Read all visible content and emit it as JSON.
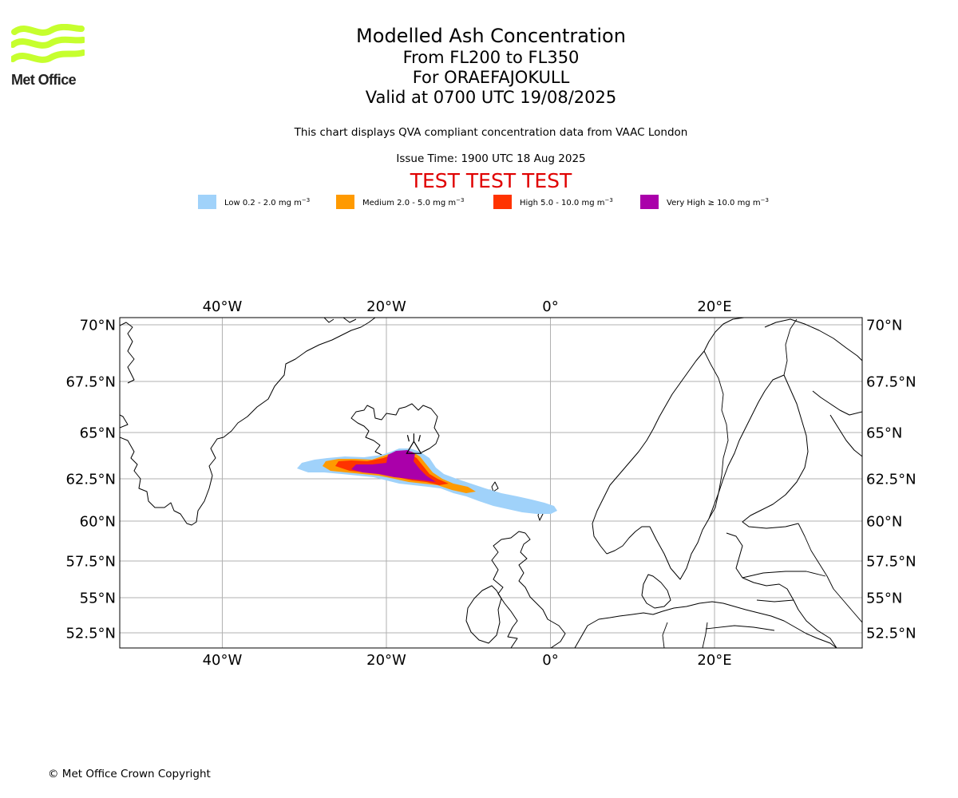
{
  "logo": {
    "text": "Met Office",
    "color": "#c6ff2e"
  },
  "title": {
    "line1": "Modelled Ash Concentration",
    "line2": "From FL200 to FL350",
    "line3": "For ORAEFAJOKULL",
    "line4": "Valid at 0700 UTC 19/08/2025"
  },
  "subtitle": {
    "compliance": "This chart displays QVA compliant concentration data from VAAC London",
    "issue_time": "Issue Time: 1900 UTC 18 Aug 2025"
  },
  "test_banner": "TEST TEST TEST",
  "legend": [
    {
      "key": "low",
      "label": "Low 0.2 - 2.0 mg m",
      "exponent": "−3",
      "color": "#a0d2fa"
    },
    {
      "key": "medium",
      "label": "Medium 2.0 - 5.0 mg m",
      "exponent": "−3",
      "color": "#ff9a00"
    },
    {
      "key": "high",
      "label": "High 5.0 - 10.0 mg m",
      "exponent": "−3",
      "color": "#ff3300"
    },
    {
      "key": "very_high",
      "label": "Very High  ≥  10.0 mg m",
      "exponent": "−3",
      "color": "#aa00aa"
    }
  ],
  "map": {
    "lon_range": [
      -52.5,
      38
    ],
    "lat_range": [
      51.5,
      70.3
    ],
    "lon_ticks": [
      {
        "value": -40,
        "label": "40°W"
      },
      {
        "value": -20,
        "label": "20°W"
      },
      {
        "value": 0,
        "label": "0°"
      },
      {
        "value": 20,
        "label": "20°E"
      }
    ],
    "lat_ticks": [
      {
        "value": 70,
        "label": "70°N"
      },
      {
        "value": 67.5,
        "label": "67.5°N"
      },
      {
        "value": 65,
        "label": "65°N"
      },
      {
        "value": 62.5,
        "label": "62.5°N"
      },
      {
        "value": 60,
        "label": "60°N"
      },
      {
        "value": 57.5,
        "label": "57.5°N"
      },
      {
        "value": 55,
        "label": "55°N"
      },
      {
        "value": 52.5,
        "label": "52.5°N"
      }
    ],
    "grid_color": "#b0b0b0",
    "volcano": {
      "lon": -16.65,
      "lat": 64.0
    }
  },
  "copyright": "© Met Office Crown Copyright"
}
